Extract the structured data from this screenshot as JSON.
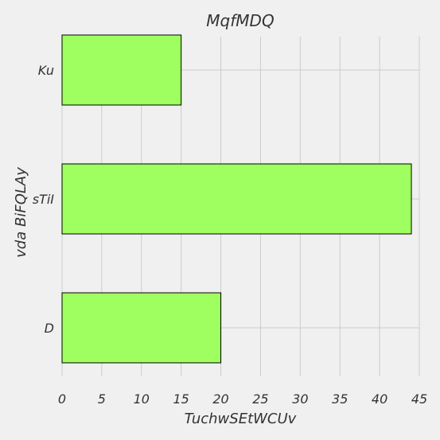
{
  "chart_data": {
    "type": "bar",
    "orientation": "horizontal",
    "title": "MqfMDQ",
    "xlabel": "TuchwSEtWCUv",
    "ylabel": "vda BiFQLAy",
    "categories": [
      "D",
      "sTiI",
      "Ku"
    ],
    "values": [
      20,
      44,
      15
    ],
    "xlim": [
      0,
      45
    ],
    "xticks": [
      0,
      5,
      10,
      15,
      20,
      25,
      30,
      35,
      40,
      45
    ],
    "grid": true,
    "bar_color": "#a0ff60",
    "background": "#f0f0f0"
  }
}
